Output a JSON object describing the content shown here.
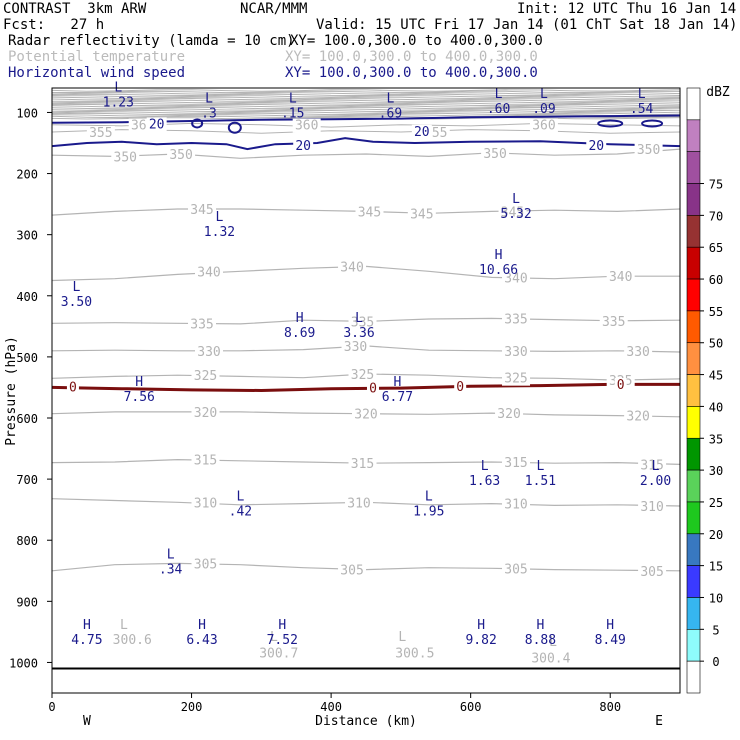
{
  "header": {
    "title": "CONTRAST  3km ARW",
    "org": "NCAR/MMM",
    "init": "Init: 12 UTC Thu 16 Jan 14",
    "fcst": "Fcst:   27 h",
    "valid": "Valid: 15 UTC Fri 17 Jan 14 (01 ChT Sat 18 Jan 14)",
    "field1": "Radar reflectivity (lamda = 10 cm)",
    "xy1": "XY= 100.0,300.0 to 400.0,300.0",
    "field2": "Potential temperature",
    "xy2": "XY= 100.0,300.0 to 400.0,300.0",
    "field3": "Horizontal wind speed",
    "xy3": "XY= 100.0,300.0 to 400.0,300.0"
  },
  "colors": {
    "theta": "#b4b4b4",
    "wind": "#1a1a8c",
    "zero": "#7a0e0e",
    "label": "#1a1a8c",
    "ground": "#000000"
  },
  "chart_data": {
    "type": "cross-section",
    "xlabel": "Distance (km)",
    "ylabel": "Pressure (hPa)",
    "xlim": [
      0,
      900
    ],
    "ylim": [
      1050,
      60
    ],
    "xticks": [
      0,
      200,
      400,
      600,
      800
    ],
    "yticks": [
      100,
      200,
      300,
      400,
      500,
      600,
      700,
      800,
      900,
      1000
    ],
    "x_end_labels": [
      "W",
      "E"
    ],
    "theta_contours": [
      {
        "value": 350,
        "p": [
          170,
          172,
          168,
          175,
          170,
          168,
          172,
          166,
          170,
          168,
          160
        ],
        "labels": [
          {
            "text": "350",
            "x": 105
          },
          {
            "text": "350",
            "x": 185
          },
          {
            "text": "350",
            "x": 635
          },
          {
            "text": "350",
            "x": 855
          }
        ]
      },
      {
        "value": 345,
        "p": [
          268,
          262,
          258,
          258,
          260,
          262,
          265,
          262,
          260,
          262,
          258
        ],
        "labels": [
          {
            "text": "345",
            "x": 215
          },
          {
            "text": "345",
            "x": 455
          },
          {
            "text": "345",
            "x": 530
          },
          {
            "text": "345",
            "x": 660
          }
        ]
      },
      {
        "value": 340,
        "p": [
          375,
          372,
          365,
          360,
          355,
          352,
          360,
          370,
          372,
          368,
          368
        ],
        "labels": [
          {
            "text": "340",
            "x": 225
          },
          {
            "text": "340",
            "x": 430
          },
          {
            "text": "340",
            "x": 665
          },
          {
            "text": "340",
            "x": 815
          }
        ]
      },
      {
        "value": 335,
        "p": [
          445,
          444,
          445,
          446,
          440,
          442,
          438,
          437,
          439,
          441,
          440
        ],
        "labels": [
          {
            "text": "335",
            "x": 215
          },
          {
            "text": "335",
            "x": 445
          },
          {
            "text": "335",
            "x": 665
          },
          {
            "text": "335",
            "x": 805
          }
        ]
      },
      {
        "value": 330,
        "p": [
          490,
          489,
          490,
          490,
          488,
          482,
          489,
          490,
          491,
          490,
          492
        ],
        "labels": [
          {
            "text": "330",
            "x": 225
          },
          {
            "text": "330",
            "x": 435
          },
          {
            "text": "330",
            "x": 665
          },
          {
            "text": "330",
            "x": 840
          }
        ]
      },
      {
        "value": 325,
        "p": [
          535,
          532,
          530,
          532,
          534,
          528,
          530,
          534,
          535,
          538,
          536
        ],
        "labels": [
          {
            "text": "325",
            "x": 220
          },
          {
            "text": "325",
            "x": 445
          },
          {
            "text": "325",
            "x": 665
          },
          {
            "text": "325",
            "x": 815
          }
        ]
      },
      {
        "value": 320,
        "p": [
          593,
          590,
          590,
          590,
          592,
          593,
          594,
          592,
          595,
          596,
          598
        ],
        "labels": [
          {
            "text": "320",
            "x": 220
          },
          {
            "text": "320",
            "x": 450
          },
          {
            "text": "320",
            "x": 655
          },
          {
            "text": "320",
            "x": 840
          }
        ]
      },
      {
        "value": 315,
        "p": [
          673,
          672,
          668,
          670,
          672,
          674,
          673,
          672,
          674,
          673,
          676
        ],
        "labels": [
          {
            "text": "315",
            "x": 220
          },
          {
            "text": "315",
            "x": 445
          },
          {
            "text": "315",
            "x": 665
          },
          {
            "text": "315",
            "x": 860
          }
        ]
      },
      {
        "value": 310,
        "p": [
          732,
          735,
          738,
          742,
          740,
          738,
          742,
          740,
          743,
          742,
          744
        ],
        "labels": [
          {
            "text": "310",
            "x": 220
          },
          {
            "text": "310",
            "x": 440
          },
          {
            "text": "310",
            "x": 665
          },
          {
            "text": "310",
            "x": 860
          }
        ]
      },
      {
        "value": 305,
        "p": [
          850,
          840,
          838,
          840,
          845,
          848,
          845,
          846,
          848,
          849,
          850
        ],
        "labels": [
          {
            "text": "305",
            "x": 220
          },
          {
            "text": "305",
            "x": 430
          },
          {
            "text": "305",
            "x": 665
          },
          {
            "text": "305",
            "x": 860
          }
        ]
      }
    ],
    "theta_upper_labels": [
      {
        "text": "355",
        "x": 70,
        "p": 132
      },
      {
        "text": "360",
        "x": 130,
        "p": 120
      },
      {
        "text": "360",
        "x": 365,
        "p": 120
      },
      {
        "text": "355",
        "x": 550,
        "p": 132
      },
      {
        "text": "360",
        "x": 705,
        "p": 120
      }
    ],
    "theta_lower_labels": [
      {
        "text": "300.6",
        "x": 115,
        "p": 970
      },
      {
        "text": "300.7",
        "x": 325,
        "p": 992
      },
      {
        "text": "300.5",
        "x": 520,
        "p": 992
      },
      {
        "text": "300.4",
        "x": 715,
        "p": 1000
      }
    ],
    "theta_lower_L": [
      {
        "text": "L",
        "x": 103,
        "p": 945
      },
      {
        "text": "L",
        "x": 318,
        "p": 965
      },
      {
        "text": "L",
        "x": 502,
        "p": 965
      },
      {
        "text": "L",
        "x": 718,
        "p": 973
      }
    ],
    "wind_contours": [
      {
        "value": 20,
        "x": [
          0,
          100,
          200,
          300,
          400,
          500,
          600,
          700,
          800,
          900
        ],
        "p": [
          117,
          116,
          114,
          112,
          111,
          110,
          108,
          107,
          106,
          105
        ]
      },
      {
        "value": 20,
        "x": [
          0,
          50,
          100,
          150,
          200,
          250,
          280,
          320,
          380,
          420,
          460,
          520,
          600,
          700,
          800,
          900
        ],
        "p": [
          155,
          150,
          148,
          152,
          150,
          152,
          160,
          152,
          150,
          142,
          148,
          150,
          148,
          147,
          152,
          155
        ]
      }
    ],
    "wind_labels": [
      {
        "text": "20",
        "x": 150,
        "p": 118
      },
      {
        "text": "20",
        "x": 530,
        "p": 130
      },
      {
        "text": "20",
        "x": 360,
        "p": 153
      },
      {
        "text": "20",
        "x": 780,
        "p": 153
      }
    ],
    "zero_contour": {
      "x": [
        0,
        100,
        200,
        300,
        400,
        500,
        600,
        700,
        800,
        900
      ],
      "p": [
        550,
        552,
        554,
        555,
        552,
        551,
        548,
        547,
        545,
        545
      ]
    },
    "zero_labels": [
      {
        "text": "0",
        "x": 30,
        "p": 550
      },
      {
        "text": "0",
        "x": 460,
        "p": 552
      },
      {
        "text": "0",
        "x": 585,
        "p": 549
      },
      {
        "text": "0",
        "x": 815,
        "p": 546
      }
    ],
    "extrema": [
      {
        "kind": "L",
        "value": "1.23",
        "x": 95,
        "p": 66
      },
      {
        "kind": "L",
        "value": ".3",
        "x": 225,
        "p": 84
      },
      {
        "kind": "L",
        "value": ".15",
        "x": 345,
        "p": 84
      },
      {
        "kind": "L",
        "value": ".69",
        "x": 485,
        "p": 84
      },
      {
        "kind": "L",
        "value": ".60",
        "x": 640,
        "p": 76
      },
      {
        "kind": "L",
        "value": ".09",
        "x": 705,
        "p": 76
      },
      {
        "kind": "L",
        "value": ".54",
        "x": 845,
        "p": 76
      },
      {
        "kind": "L",
        "value": "1.32",
        "x": 240,
        "p": 278
      },
      {
        "kind": "L",
        "value": "5.32",
        "x": 665,
        "p": 248
      },
      {
        "kind": "H",
        "value": "10.66",
        "x": 640,
        "p": 340
      },
      {
        "kind": "L",
        "value": "3.50",
        "x": 35,
        "p": 392
      },
      {
        "kind": "H",
        "value": "8.69",
        "x": 355,
        "p": 443
      },
      {
        "kind": "L",
        "value": "3.36",
        "x": 440,
        "p": 443
      },
      {
        "kind": "H",
        "value": "7.56",
        "x": 125,
        "p": 548
      },
      {
        "kind": "H",
        "value": "6.77",
        "x": 495,
        "p": 548
      },
      {
        "kind": "L",
        "value": "1.63",
        "x": 620,
        "p": 685
      },
      {
        "kind": "L",
        "value": "1.51",
        "x": 700,
        "p": 685
      },
      {
        "kind": "L",
        "value": "2.00",
        "x": 865,
        "p": 685
      },
      {
        "kind": "L",
        "value": ".42",
        "x": 270,
        "p": 735
      },
      {
        "kind": "L",
        "value": "1.95",
        "x": 540,
        "p": 735
      },
      {
        "kind": "L",
        "value": ".34",
        "x": 170,
        "p": 830
      },
      {
        "kind": "H",
        "value": "4.75",
        "x": 50,
        "p": 945
      },
      {
        "kind": "H",
        "value": "6.43",
        "x": 215,
        "p": 945
      },
      {
        "kind": "H",
        "value": "7.52",
        "x": 330,
        "p": 945
      },
      {
        "kind": "H",
        "value": "9.82",
        "x": 615,
        "p": 945
      },
      {
        "kind": "H",
        "value": "8.88",
        "x": 700,
        "p": 945
      },
      {
        "kind": "H",
        "value": "8.49",
        "x": 800,
        "p": 945
      }
    ],
    "ground_p": 1010,
    "colorbar": {
      "unit": "dBZ",
      "levels": [
        "0",
        "5",
        "10",
        "15",
        "20",
        "25",
        "30",
        "35",
        "40",
        "45",
        "50",
        "55",
        "60",
        "65",
        "70",
        "75"
      ],
      "colors": [
        "#ffffff",
        "#8efcfc",
        "#36b6f0",
        "#3a3aff",
        "#3878c0",
        "#1ec81e",
        "#5ad25a",
        "#009600",
        "#ffff00",
        "#ffc040",
        "#ff9040",
        "#ff5a00",
        "#ff0000",
        "#c80000",
        "#963232",
        "#883388",
        "#a050a0",
        "#c080c0",
        "#ffffff"
      ]
    }
  }
}
